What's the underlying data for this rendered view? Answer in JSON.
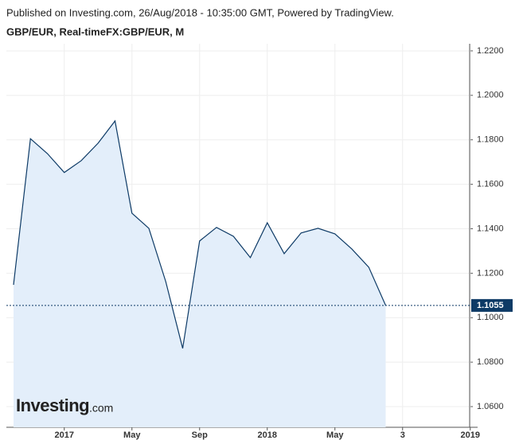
{
  "chart_data": {
    "type": "area",
    "title": "Published on Investing.com, 26/Aug/2018 - 10:35:00 GMT, Powered by TradingView.",
    "subtitle": "GBP/EUR, Real-timeFX:GBP/EUR, M",
    "watermark": "Investing",
    "watermark_suffix": ".com",
    "categories": [
      null,
      null,
      null,
      "2017",
      null,
      null,
      null,
      "May",
      null,
      null,
      null,
      "Sep",
      null,
      null,
      null,
      "2018",
      null,
      null,
      null,
      "May",
      null,
      null,
      null,
      "3",
      null,
      null,
      null,
      "2019"
    ],
    "series": [
      {
        "name": "GBP/EUR",
        "color": "#0d3a66",
        "values": [
          1.1148,
          1.1805,
          1.1738,
          1.1653,
          1.1706,
          1.1785,
          1.1885,
          1.147,
          1.1402,
          1.1162,
          1.0862,
          1.1345,
          1.1406,
          1.1366,
          1.127,
          1.1427,
          1.1288,
          1.1381,
          1.1402,
          1.1377,
          1.1309,
          1.1227,
          1.1055,
          null,
          null,
          null,
          null,
          null
        ]
      }
    ],
    "last_price": {
      "value": 1.1055,
      "label": "1.1055"
    },
    "fill": "#e3eefa",
    "ylim": [
      1.0507,
      1.2232
    ],
    "yticks": [
      {
        "value": 1.22,
        "label": "1.2200"
      },
      {
        "value": 1.2,
        "label": "1.2000"
      },
      {
        "value": 1.18,
        "label": "1.1800"
      },
      {
        "value": 1.16,
        "label": "1.1600"
      },
      {
        "value": 1.14,
        "label": "1.1400"
      },
      {
        "value": 1.12,
        "label": "1.1200"
      },
      {
        "value": 1.1,
        "label": "1.1000"
      },
      {
        "value": 1.08,
        "label": "1.0800"
      },
      {
        "value": 1.06,
        "label": "1.0600"
      }
    ],
    "grid": true
  }
}
